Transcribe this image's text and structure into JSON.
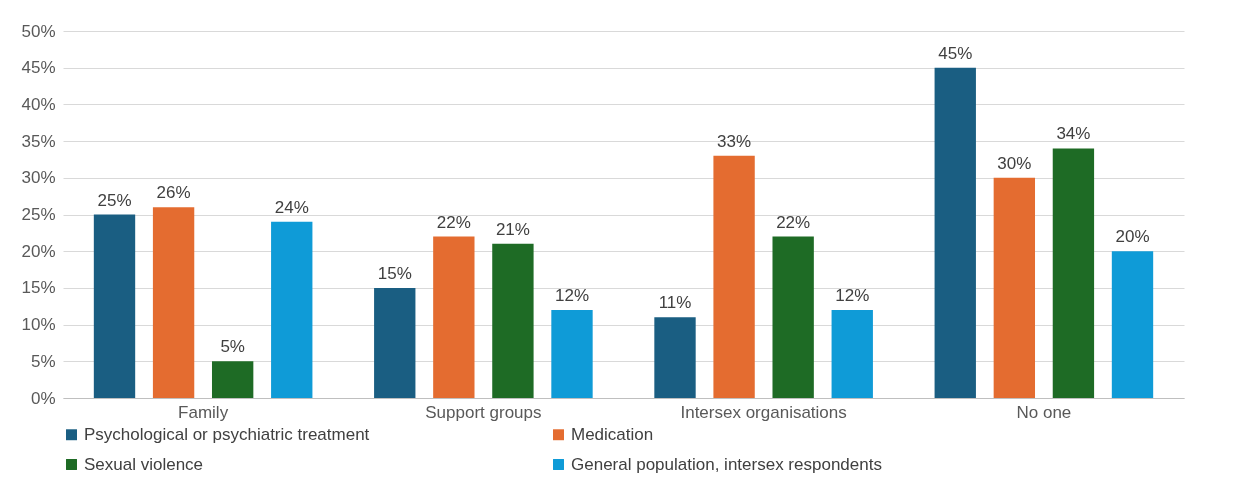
{
  "chart_data": {
    "type": "bar",
    "categories": [
      "Family",
      "Support groups",
      "Intersex organisations",
      "No one"
    ],
    "series": [
      {
        "name": "Psychological or psychiatric treatment",
        "color": "#1a5e82",
        "values": [
          25,
          15,
          11,
          45
        ],
        "value_labels": [
          "25%",
          "15%",
          "11%",
          "45%"
        ]
      },
      {
        "name": "Medication",
        "color": "#e46c30",
        "values": [
          26,
          22,
          33,
          30
        ],
        "value_labels": [
          "26%",
          "22%",
          "33%",
          "30%"
        ]
      },
      {
        "name": "Sexual violence",
        "color": "#1e6b25",
        "values": [
          5,
          21,
          22,
          34
        ],
        "value_labels": [
          "5%",
          "21%",
          "22%",
          "34%"
        ]
      },
      {
        "name": "General population, intersex respondents",
        "color": "#0f9bd7",
        "values": [
          24,
          12,
          12,
          20
        ],
        "value_labels": [
          "24%",
          "12%",
          "12%",
          "20%"
        ]
      }
    ],
    "ylim": [
      0,
      50
    ],
    "yticks": [
      {
        "value": 0,
        "label": "0%"
      },
      {
        "value": 5,
        "label": "5%"
      },
      {
        "value": 10,
        "label": "10%"
      },
      {
        "value": 15,
        "label": "15%"
      },
      {
        "value": 20,
        "label": "20%"
      },
      {
        "value": 25,
        "label": "25%"
      },
      {
        "value": 30,
        "label": "30%"
      },
      {
        "value": 35,
        "label": "35%"
      },
      {
        "value": 40,
        "label": "40%"
      },
      {
        "value": 45,
        "label": "45%"
      },
      {
        "value": 50,
        "label": "50%"
      }
    ],
    "grid": "y",
    "legend": "bottom"
  }
}
